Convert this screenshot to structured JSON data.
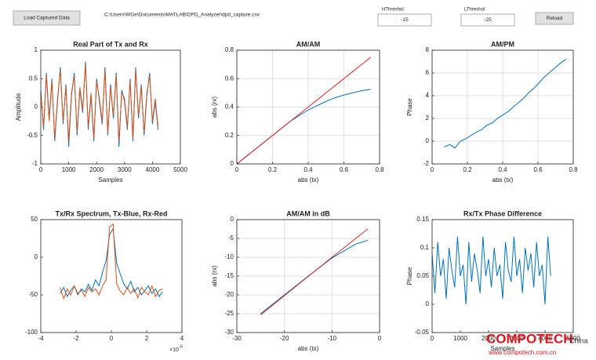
{
  "toolbar": {
    "load_button": "Load Captured Data",
    "file_path": "C:\\Users\\WGe\\Documents\\MATLAB\\DPD_Analyzer\\dpd_capture.csv",
    "hthreshold_label": "HThreshol",
    "hthreshold_value": "-15",
    "lthreshold_label": "LThreshol",
    "lthreshold_value": "-25",
    "reload_button": "Reload"
  },
  "watermark": {
    "brand": "COMPOTECH",
    "region": "China",
    "url": "www.compotech.com.cn"
  },
  "chart_data": [
    {
      "type": "line",
      "title": "Real Part of Tx and Rx",
      "xlabel": "Samples",
      "ylabel": "Amplitude",
      "grid": false,
      "xlim": [
        0,
        5000
      ],
      "xticks": [
        0,
        1000,
        2000,
        3000,
        4000,
        5000
      ],
      "ylim": [
        -1,
        1
      ],
      "yticks": [
        -1,
        -0.5,
        0,
        0.5,
        1
      ],
      "x": [
        0,
        100,
        200,
        300,
        400,
        500,
        600,
        700,
        800,
        900,
        1000,
        1100,
        1200,
        1300,
        1400,
        1500,
        1600,
        1700,
        1800,
        1900,
        2000,
        2100,
        2200,
        2300,
        2400,
        2500,
        2600,
        2700,
        2800,
        2900,
        3000,
        3100,
        3200,
        3300,
        3400,
        3500,
        3600,
        3700,
        3800,
        3900,
        4000,
        4100,
        4200
      ],
      "series": [
        {
          "color": "#0072bd",
          "values": [
            0.3,
            -0.4,
            0.6,
            -0.2,
            0.5,
            -0.6,
            0.1,
            0.7,
            -0.3,
            0.4,
            -0.7,
            0.2,
            0.6,
            -0.5,
            0.3,
            -0.1,
            0.8,
            -0.4,
            0.2,
            -0.6,
            0.5,
            0.1,
            -0.3,
            0.7,
            -0.5,
            0.4,
            -0.2,
            0.6,
            -0.7,
            0.3,
            0.1,
            -0.4,
            0.5,
            -0.6,
            0.7,
            -0.2,
            0.4,
            -0.5,
            0.2,
            0.6,
            -0.3,
            0.1,
            -0.4
          ]
        },
        {
          "color": "#d95319",
          "values": [
            0.25,
            -0.35,
            0.55,
            -0.25,
            0.45,
            -0.55,
            0.15,
            0.65,
            -0.25,
            0.35,
            -0.6,
            0.25,
            0.55,
            -0.45,
            0.35,
            -0.05,
            0.75,
            -0.35,
            0.25,
            -0.55,
            0.45,
            0.15,
            -0.25,
            0.65,
            -0.45,
            0.35,
            -0.15,
            0.55,
            -0.6,
            0.25,
            0.15,
            -0.35,
            0.45,
            -0.55,
            0.65,
            -0.15,
            0.35,
            -0.45,
            0.25,
            0.55,
            -0.25,
            0.15,
            -0.35
          ]
        }
      ]
    },
    {
      "type": "line",
      "title": "AM/AM",
      "xlabel": "abs (tx)",
      "ylabel": "abs (rx)",
      "grid": true,
      "xlim": [
        0,
        0.8
      ],
      "xticks": [
        0,
        0.2,
        0.4,
        0.6,
        0.8
      ],
      "ylim": [
        0,
        0.8
      ],
      "yticks": [
        0,
        0.2,
        0.4,
        0.6,
        0.8
      ],
      "x": [
        0,
        0.05,
        0.1,
        0.15,
        0.2,
        0.25,
        0.3,
        0.35,
        0.4,
        0.45,
        0.5,
        0.55,
        0.6,
        0.65,
        0.7,
        0.75
      ],
      "series": [
        {
          "color": "#0072bd",
          "values": [
            0,
            0.05,
            0.1,
            0.15,
            0.2,
            0.25,
            0.3,
            0.34,
            0.38,
            0.41,
            0.44,
            0.465,
            0.485,
            0.5,
            0.515,
            0.525
          ]
        },
        {
          "color": "#d62728",
          "values": [
            0,
            0.05,
            0.1,
            0.15,
            0.2,
            0.25,
            0.3,
            0.35,
            0.4,
            0.45,
            0.5,
            0.55,
            0.6,
            0.65,
            0.7,
            0.75
          ]
        }
      ]
    },
    {
      "type": "line",
      "title": "AM/PM",
      "xlabel": "abs (tx)",
      "ylabel": "Phase",
      "grid": true,
      "xlim": [
        0,
        0.8
      ],
      "xticks": [
        0,
        0.2,
        0.4,
        0.6,
        0.8
      ],
      "ylim": [
        -2,
        8
      ],
      "yticks": [
        -2,
        0,
        2,
        4,
        6,
        8
      ],
      "x": [
        0.07,
        0.1,
        0.13,
        0.16,
        0.19,
        0.22,
        0.25,
        0.28,
        0.31,
        0.34,
        0.37,
        0.4,
        0.43,
        0.46,
        0.49,
        0.52,
        0.55,
        0.58,
        0.61,
        0.64,
        0.67,
        0.7,
        0.73,
        0.76
      ],
      "series": [
        {
          "color": "#0072bd",
          "values": [
            -0.5,
            -0.3,
            -0.6,
            0.0,
            0.2,
            0.5,
            0.8,
            1.0,
            1.4,
            1.6,
            2.0,
            2.3,
            2.6,
            3.0,
            3.4,
            3.8,
            4.3,
            4.7,
            5.2,
            5.7,
            6.1,
            6.5,
            6.9,
            7.2
          ]
        }
      ]
    },
    {
      "type": "line",
      "title": "Tx/Rx Spectrum, Tx-Blue, Rx-Red",
      "grid": false,
      "x_multiplier": "×10",
      "x_multiplier_exponent": "-5",
      "xlim": [
        -4,
        4
      ],
      "xticks": [
        -4,
        -2,
        0,
        2,
        4
      ],
      "ylim": [
        -100,
        50
      ],
      "yticks": [
        -100,
        -50,
        0,
        50
      ],
      "x": [
        -2.9,
        -2.7,
        -2.5,
        -2.3,
        -2.1,
        -1.9,
        -1.7,
        -1.5,
        -1.3,
        -1.1,
        -0.9,
        -0.7,
        -0.5,
        -0.3,
        -0.1,
        0.1,
        0.3,
        0.5,
        0.7,
        0.9,
        1.1,
        1.3,
        1.5,
        1.7,
        1.9,
        2.1,
        2.3,
        2.5,
        2.7,
        2.9
      ],
      "series": [
        {
          "color": "#0072bd",
          "values": [
            -48,
            -40,
            -52,
            -44,
            -38,
            -50,
            -42,
            -46,
            -36,
            -44,
            -30,
            -38,
            -20,
            -5,
            30,
            38,
            -8,
            -22,
            -35,
            -42,
            -32,
            -46,
            -40,
            -50,
            -44,
            -38,
            -48,
            -42,
            -52,
            -46
          ]
        },
        {
          "color": "#d95319",
          "values": [
            -40,
            -55,
            -42,
            -50,
            -38,
            -48,
            -44,
            -52,
            -40,
            -46,
            -42,
            -50,
            -38,
            -30,
            40,
            44,
            -35,
            -45,
            -50,
            -40,
            -48,
            -42,
            -54,
            -40,
            -46,
            -50,
            -38,
            -52,
            -44,
            -42
          ]
        }
      ]
    },
    {
      "type": "line",
      "title": "AM/AM in dB",
      "xlabel": "abs (tx)",
      "ylabel": "abs (rx)",
      "grid": true,
      "xlim": [
        -30,
        0
      ],
      "xticks": [
        -30,
        -20,
        -10,
        0
      ],
      "ylim": [
        -30,
        0
      ],
      "yticks": [
        -30,
        -25,
        -20,
        -15,
        -10,
        -5,
        0
      ],
      "x": [
        -25,
        -20,
        -15,
        -10,
        -5,
        -2.5
      ],
      "series": [
        {
          "color": "#0072bd",
          "values": [
            -25,
            -20,
            -15,
            -10.2,
            -6.5,
            -5.5
          ]
        },
        {
          "color": "#d62728",
          "values": [
            -25.3,
            -20.2,
            -15.1,
            -10,
            -5,
            -2.5
          ]
        }
      ]
    },
    {
      "type": "line",
      "title": "Rx/Tx Phase Difference",
      "xlabel": "Samples",
      "ylabel": "Phase",
      "grid": false,
      "xlim": [
        0,
        5000
      ],
      "xticks": [
        0,
        1000,
        2000,
        3000,
        4000,
        5000
      ],
      "ylim": [
        -0.05,
        0.15
      ],
      "yticks": [
        -0.05,
        0,
        0.05,
        0.1,
        0.15
      ],
      "x": [
        0,
        100,
        200,
        300,
        400,
        500,
        600,
        700,
        800,
        900,
        1000,
        1100,
        1200,
        1300,
        1400,
        1500,
        1600,
        1700,
        1800,
        1900,
        2000,
        2100,
        2200,
        2300,
        2400,
        2500,
        2600,
        2700,
        2800,
        2900,
        3000,
        3100,
        3200,
        3300,
        3400,
        3500,
        3600,
        3700,
        3800,
        3900,
        4000,
        4100,
        4200
      ],
      "series": [
        {
          "color": "#0072bd",
          "values": [
            0.09,
            0.02,
            0.11,
            0.05,
            0.08,
            0.01,
            0.1,
            0.06,
            0.03,
            0.12,
            0.05,
            0.07,
            0.0,
            0.11,
            0.04,
            0.09,
            0.06,
            0.02,
            0.12,
            0.05,
            0.08,
            0.03,
            0.1,
            0.05,
            0.07,
            0.01,
            0.11,
            0.06,
            0.04,
            0.12,
            0.05,
            0.08,
            0.02,
            0.1,
            0.06,
            0.09,
            0.03,
            0.11,
            0.05,
            0.07,
            0.0,
            0.12,
            0.05
          ]
        }
      ]
    }
  ]
}
